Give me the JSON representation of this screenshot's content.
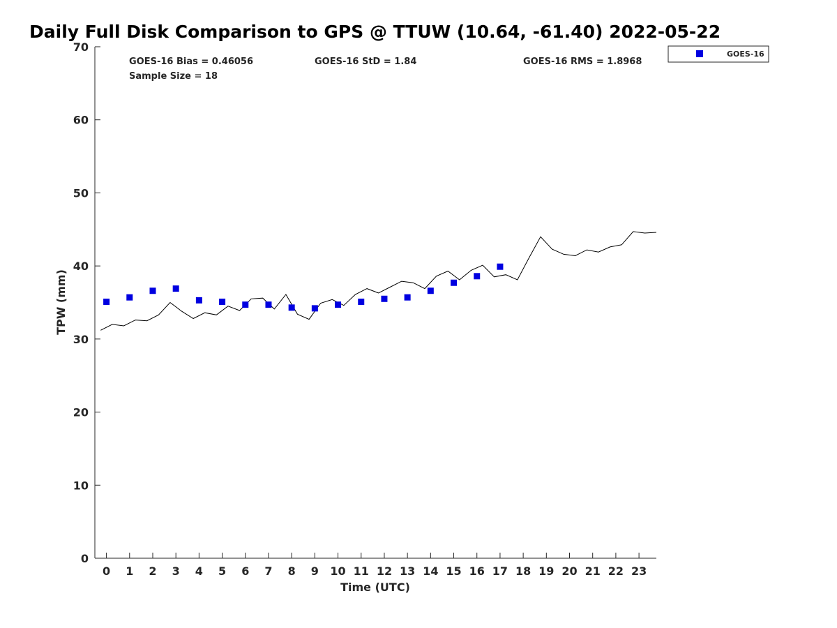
{
  "chart_data": {
    "type": "scatter",
    "title": "Daily Full Disk Comparison to GPS @ TTUW (10.64, -61.40) 2022-05-22",
    "xlabel": "Time (UTC)",
    "ylabel": "TPW (mm)",
    "xlim": [
      -0.5,
      23.75
    ],
    "ylim": [
      0,
      70
    ],
    "xticks": [
      0,
      1,
      2,
      3,
      4,
      5,
      6,
      7,
      8,
      9,
      10,
      11,
      12,
      13,
      14,
      15,
      16,
      17,
      18,
      19,
      20,
      21,
      22,
      23
    ],
    "yticks": [
      0,
      10,
      20,
      30,
      40,
      50,
      60,
      70
    ],
    "grid": false,
    "legend_position": "top-right",
    "stats": [
      "GOES-16 Bias = 0.46056",
      "GOES-16 StD = 1.84",
      "GOES-16 RMS = 1.8968",
      "Sample Size = 18"
    ],
    "series": [
      {
        "name": "GOES-16",
        "kind": "scatter",
        "color": "#0000e0",
        "marker": "square",
        "x": [
          0,
          1,
          2,
          3,
          4,
          5,
          6,
          7,
          8,
          9,
          10,
          11,
          12,
          13,
          14,
          15,
          16,
          17
        ],
        "y": [
          35.1,
          35.7,
          36.6,
          36.9,
          35.3,
          35.1,
          34.7,
          34.7,
          34.3,
          34.2,
          34.7,
          35.1,
          35.5,
          35.7,
          36.6,
          37.7,
          38.6,
          39.9
        ]
      },
      {
        "kind": "line",
        "color": "#000000",
        "x": [
          -0.25,
          0.25,
          0.75,
          1.25,
          1.75,
          2.25,
          2.75,
          3.25,
          3.75,
          4.25,
          4.75,
          5.25,
          5.75,
          6.25,
          6.75,
          7.25,
          7.75,
          8.25,
          8.75,
          9.25,
          9.75,
          10.25,
          10.75,
          11.25,
          11.75,
          12.25,
          12.75,
          13.25,
          13.75,
          14.25,
          14.75,
          15.25,
          15.75,
          16.25,
          16.75,
          17.25,
          17.75,
          18.25,
          18.75,
          19.25,
          19.75,
          20.25,
          20.75,
          21.25,
          21.75,
          22.25,
          22.75,
          23.25,
          23.75
        ],
        "y": [
          31.2,
          32.0,
          31.8,
          32.6,
          32.5,
          33.3,
          35.0,
          33.8,
          32.8,
          33.6,
          33.3,
          34.5,
          33.9,
          35.5,
          35.6,
          34.1,
          36.1,
          33.4,
          32.7,
          34.9,
          35.4,
          34.6,
          36.1,
          36.9,
          36.3,
          37.1,
          37.9,
          37.7,
          36.9,
          38.6,
          39.3,
          38.1,
          39.4,
          40.1,
          38.5,
          38.8,
          38.1,
          41.1,
          44.0,
          42.3,
          41.6,
          41.4,
          42.2,
          41.9,
          42.6,
          42.9,
          44.7,
          44.5,
          44.6
        ]
      }
    ]
  }
}
